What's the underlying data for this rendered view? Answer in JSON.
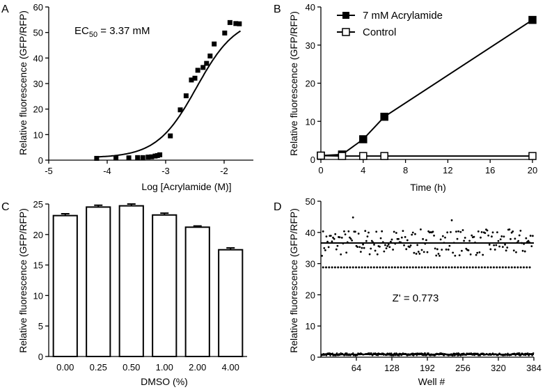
{
  "chart_data": [
    {
      "panel": "A",
      "type": "scatter",
      "annotation": "EC50 = 3.37 mM",
      "annotation_main": "EC",
      "annotation_sub": "50",
      "annotation_rest": " = 3.37 mM",
      "xlabel": "Log [Acrylamide (M)]",
      "ylabel": "Relative fluorescence (GFP/RFP)",
      "xlim": [
        -5,
        -1.5
      ],
      "ylim": [
        0,
        60
      ],
      "xticks": [
        -5,
        -4,
        -3,
        -2
      ],
      "yticks": [
        0,
        10,
        20,
        30,
        40,
        50,
        60
      ],
      "points": {
        "x": [
          -4.18,
          -3.85,
          -3.63,
          -3.48,
          -3.39,
          -3.3,
          -3.24,
          -3.18,
          -3.14,
          -3.1,
          -2.92,
          -2.75,
          -2.65,
          -2.56,
          -2.5,
          -2.45,
          -2.36,
          -2.3,
          -2.24,
          -2.17,
          -1.99,
          -1.9,
          -1.8,
          -1.74
        ],
        "y": [
          0.7,
          0.8,
          0.9,
          1.0,
          1.0,
          1.2,
          1.3,
          1.6,
          1.8,
          2.1,
          9.5,
          19.7,
          25.2,
          31.4,
          32.1,
          35.2,
          36.3,
          37.9,
          40.8,
          45.5,
          49.8,
          53.9,
          53.5,
          53.4
        ]
      },
      "fit": {
        "model": "sigmoid",
        "bottom": 0.9,
        "top": 56,
        "logEC50": -2.472,
        "hill": 1.28
      }
    },
    {
      "panel": "B",
      "type": "line",
      "xlabel": "Time (h)",
      "ylabel": "Relative fluorescence (GFP/RFP)",
      "xlim": [
        0,
        20
      ],
      "ylim": [
        0,
        40
      ],
      "xticks": [
        0,
        4,
        8,
        12,
        16,
        20
      ],
      "yticks": [
        0,
        10,
        20,
        30,
        40
      ],
      "legend_position": "top-left",
      "series": [
        {
          "name": "7 mM Acrylamide",
          "marker": "filled-square",
          "x": [
            0,
            2,
            4,
            6,
            20
          ],
          "y": [
            1.0,
            1.3,
            5.3,
            11.2,
            36.6
          ]
        },
        {
          "name": "Control",
          "marker": "open-square",
          "x": [
            0,
            2,
            4,
            6,
            20
          ],
          "y": [
            1.0,
            0.9,
            0.9,
            0.9,
            0.9
          ]
        }
      ]
    },
    {
      "panel": "C",
      "type": "bar",
      "xlabel": "DMSO (%)",
      "ylabel": "Relative fluorescence (GFP/RFP)",
      "ylim": [
        0,
        25
      ],
      "yticks": [
        0,
        5,
        10,
        15,
        20,
        25
      ],
      "categories": [
        "0.00",
        "0.25",
        "0.50",
        "1.00",
        "2.00",
        "4.00"
      ],
      "values": [
        23.1,
        24.5,
        24.7,
        23.2,
        21.2,
        17.5
      ],
      "errors": [
        0.3,
        0.3,
        0.3,
        0.3,
        0.2,
        0.3
      ]
    },
    {
      "panel": "D",
      "type": "scatter",
      "annotation": "Z' = 0.773",
      "xlabel": "Well #",
      "ylabel": "Relative fluorescence (GFP/RFP)",
      "xlim": [
        0,
        384
      ],
      "ylim": [
        0,
        50
      ],
      "xticks": [
        64,
        128,
        192,
        256,
        320,
        384
      ],
      "yticks": [
        0,
        10,
        20,
        30,
        40,
        50
      ],
      "n_wells": 384,
      "positive_mean": 36.6,
      "positive_band": [
        32.5,
        41.0
      ],
      "positive_extremes": [
        {
          "well": 58,
          "value": 44.8
        },
        {
          "well": 236,
          "value": 43.9
        }
      ],
      "three_sd_line": 28.8,
      "negative_mean": 0.9
    }
  ]
}
